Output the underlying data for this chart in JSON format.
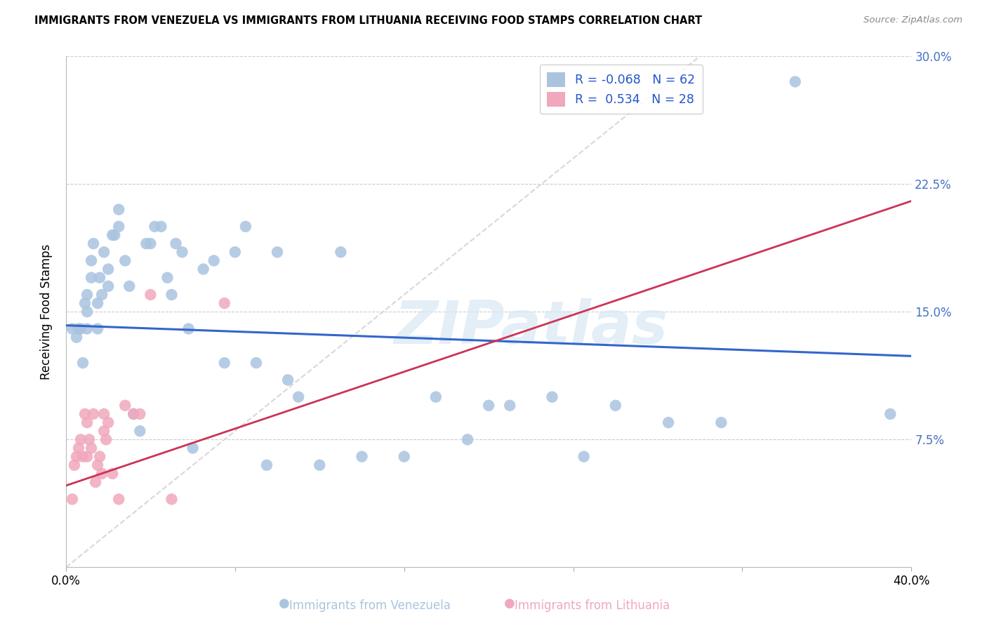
{
  "title": "IMMIGRANTS FROM VENEZUELA VS IMMIGRANTS FROM LITHUANIA RECEIVING FOOD STAMPS CORRELATION CHART",
  "source": "Source: ZipAtlas.com",
  "ylabel": "Receiving Food Stamps",
  "xlim": [
    0.0,
    0.4
  ],
  "ylim": [
    0.0,
    0.3
  ],
  "xtick_positions": [
    0.0,
    0.08,
    0.16,
    0.24,
    0.32,
    0.4
  ],
  "xticklabels": [
    "0.0%",
    "",
    "",
    "",
    "",
    "40.0%"
  ],
  "ytick_positions": [
    0.0,
    0.075,
    0.15,
    0.225,
    0.3
  ],
  "yticklabels_right": [
    "",
    "7.5%",
    "15.0%",
    "22.5%",
    "30.0%"
  ],
  "legend_R_blue": "-0.068",
  "legend_N_blue": "62",
  "legend_R_pink": "0.534",
  "legend_N_pink": "28",
  "blue_scatter_color": "#aac4e0",
  "pink_scatter_color": "#f0a8bc",
  "line_blue_color": "#3366cc",
  "line_pink_color": "#cc3355",
  "diag_line_color": "#d8d8d8",
  "watermark": "ZIPatlas",
  "blue_line_x": [
    0.0,
    0.4
  ],
  "blue_line_y": [
    0.142,
    0.124
  ],
  "pink_line_x": [
    0.0,
    0.4
  ],
  "pink_line_y": [
    0.048,
    0.215
  ],
  "venezuela_x": [
    0.003,
    0.005,
    0.006,
    0.007,
    0.008,
    0.009,
    0.01,
    0.01,
    0.01,
    0.012,
    0.012,
    0.013,
    0.015,
    0.015,
    0.016,
    0.017,
    0.018,
    0.02,
    0.02,
    0.022,
    0.023,
    0.025,
    0.025,
    0.028,
    0.03,
    0.032,
    0.035,
    0.038,
    0.04,
    0.042,
    0.045,
    0.048,
    0.05,
    0.052,
    0.055,
    0.058,
    0.06,
    0.065,
    0.07,
    0.075,
    0.08,
    0.085,
    0.09,
    0.095,
    0.1,
    0.105,
    0.11,
    0.12,
    0.13,
    0.14,
    0.16,
    0.175,
    0.19,
    0.2,
    0.21,
    0.23,
    0.245,
    0.26,
    0.285,
    0.31,
    0.345,
    0.39
  ],
  "venezuela_y": [
    0.14,
    0.135,
    0.14,
    0.14,
    0.12,
    0.155,
    0.14,
    0.15,
    0.16,
    0.18,
    0.17,
    0.19,
    0.155,
    0.14,
    0.17,
    0.16,
    0.185,
    0.175,
    0.165,
    0.195,
    0.195,
    0.21,
    0.2,
    0.18,
    0.165,
    0.09,
    0.08,
    0.19,
    0.19,
    0.2,
    0.2,
    0.17,
    0.16,
    0.19,
    0.185,
    0.14,
    0.07,
    0.175,
    0.18,
    0.12,
    0.185,
    0.2,
    0.12,
    0.06,
    0.185,
    0.11,
    0.1,
    0.06,
    0.185,
    0.065,
    0.065,
    0.1,
    0.075,
    0.095,
    0.095,
    0.1,
    0.065,
    0.095,
    0.085,
    0.085,
    0.285,
    0.09
  ],
  "lithuania_x": [
    0.003,
    0.004,
    0.005,
    0.006,
    0.007,
    0.008,
    0.009,
    0.01,
    0.01,
    0.011,
    0.012,
    0.013,
    0.014,
    0.015,
    0.016,
    0.017,
    0.018,
    0.018,
    0.019,
    0.02,
    0.022,
    0.025,
    0.028,
    0.032,
    0.035,
    0.04,
    0.05,
    0.075
  ],
  "lithuania_y": [
    0.04,
    0.06,
    0.065,
    0.07,
    0.075,
    0.065,
    0.09,
    0.065,
    0.085,
    0.075,
    0.07,
    0.09,
    0.05,
    0.06,
    0.065,
    0.055,
    0.08,
    0.09,
    0.075,
    0.085,
    0.055,
    0.04,
    0.095,
    0.09,
    0.09,
    0.16,
    0.04,
    0.155
  ]
}
